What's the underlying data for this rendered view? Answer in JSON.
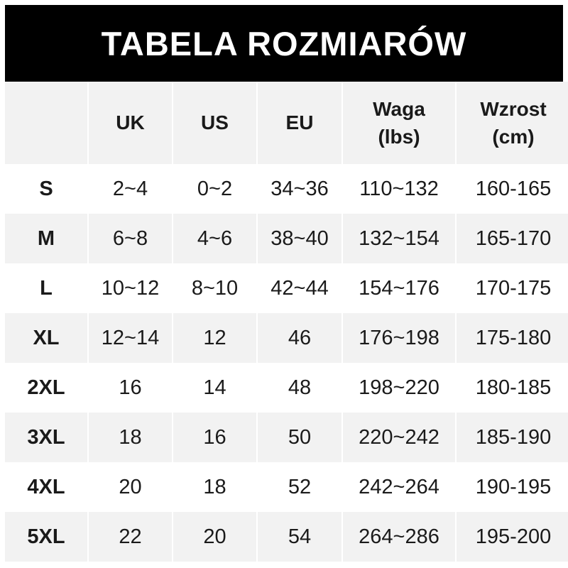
{
  "title": "TABELA ROZMIARÓW",
  "headers": [
    "",
    "UK",
    "US",
    "EU",
    "Waga\n(lbs)",
    "Wzrost\n(cm)"
  ],
  "rows": [
    [
      "S",
      "2~4",
      "0~2",
      "34~36",
      "110~132",
      "160-165"
    ],
    [
      "M",
      "6~8",
      "4~6",
      "38~40",
      "132~154",
      "165-170"
    ],
    [
      "L",
      "10~12",
      "8~10",
      "42~44",
      "154~176",
      "170-175"
    ],
    [
      "XL",
      "12~14",
      "12",
      "46",
      "176~198",
      "175-180"
    ],
    [
      "2XL",
      "16",
      "14",
      "48",
      "198~220",
      "180-185"
    ],
    [
      "3XL",
      "18",
      "16",
      "50",
      "220~242",
      "185-190"
    ],
    [
      "4XL",
      "20",
      "18",
      "52",
      "242~264",
      "190-195"
    ],
    [
      "5XL",
      "22",
      "20",
      "54",
      "264~286",
      "195-200"
    ]
  ],
  "colors": {
    "title_bg": "#000000",
    "row_alt": "#f2f2f2"
  }
}
